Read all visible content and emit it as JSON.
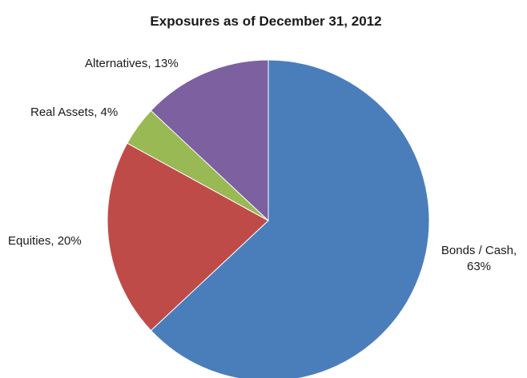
{
  "chart_data": {
    "type": "pie",
    "title": "Exposures as of December 31, 2012",
    "start_angle_deg": 0,
    "direction": "clockwise",
    "slices": [
      {
        "label": "Bonds / Cash, 63%",
        "label_lines": [
          "Bonds / Cash,",
          "63%"
        ],
        "category": "Bonds / Cash",
        "value": 63,
        "color": "#4a7ebb"
      },
      {
        "label": "Equities, 20%",
        "label_lines": [
          "Equities, 20%"
        ],
        "category": "Equities",
        "value": 20,
        "color": "#be4b48"
      },
      {
        "label": "Real Assets, 4%",
        "label_lines": [
          "Real Assets, 4%"
        ],
        "category": "Real Assets",
        "value": 4,
        "color": "#98b954"
      },
      {
        "label": "Alternatives, 13%",
        "label_lines": [
          "Alternatives, 13%"
        ],
        "category": "Alternatives",
        "value": 13,
        "color": "#7d60a0"
      }
    ]
  }
}
